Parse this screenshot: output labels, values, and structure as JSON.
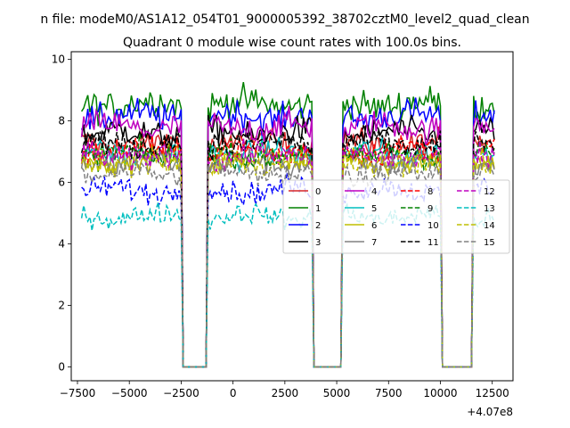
{
  "chart_data": {
    "type": "line",
    "suptitle": "n file: modeM0/AS1A12_054T01_9000005392_38702cztM0_level2_quad_clean",
    "title": "Quadrant 0 module wise count rates with 100.0s bins.",
    "xlabel": "",
    "ylabel": "",
    "x_offset_label": "+4.07e8",
    "xlim": [
      -7800,
      13500
    ],
    "ylim": [
      -0.45,
      10.25
    ],
    "xticks": [
      -7500,
      -5000,
      -2500,
      0,
      2500,
      5000,
      7500,
      10000,
      12500
    ],
    "xtick_labels": [
      "−7500",
      "−5000",
      "−2500",
      "0",
      "2500",
      "5000",
      "7500",
      "10000",
      "12500"
    ],
    "yticks": [
      0,
      2,
      4,
      6,
      8,
      10
    ],
    "ytick_labels": [
      "0",
      "2",
      "4",
      "6",
      "8",
      "10"
    ],
    "grid": false,
    "legend_position": "center-right",
    "legend_columns": 4,
    "bin_width_s": 100,
    "segments": [
      {
        "start": -7300,
        "end": -2500
      },
      {
        "start": -1200,
        "end": 3800
      },
      {
        "start": 5300,
        "end": 10000
      },
      {
        "start": 11600,
        "end": 12600
      }
    ],
    "series": [
      {
        "name": "0",
        "color": "#d62728",
        "dash": "solid",
        "mean": 7.25
      },
      {
        "name": "1",
        "color": "#008000",
        "dash": "solid",
        "mean": 8.55
      },
      {
        "name": "2",
        "color": "#0000ff",
        "dash": "solid",
        "mean": 8.15
      },
      {
        "name": "3",
        "color": "#000000",
        "dash": "solid",
        "mean": 7.6
      },
      {
        "name": "4",
        "color": "#bf00bf",
        "dash": "solid",
        "mean": 7.8
      },
      {
        "name": "5",
        "color": "#00bfbf",
        "dash": "solid",
        "mean": 6.95
      },
      {
        "name": "6",
        "color": "#bfbf00",
        "dash": "solid",
        "mean": 6.75
      },
      {
        "name": "7",
        "color": "#808080",
        "dash": "solid",
        "mean": 6.65
      },
      {
        "name": "8",
        "color": "#ff0000",
        "dash": "dashed",
        "mean": 7.05
      },
      {
        "name": "9",
        "color": "#008000",
        "dash": "dashed",
        "mean": 6.9
      },
      {
        "name": "10",
        "color": "#0000ff",
        "dash": "dashed",
        "mean": 5.75
      },
      {
        "name": "11",
        "color": "#000000",
        "dash": "dashed",
        "mean": 7.25
      },
      {
        "name": "12",
        "color": "#bf00bf",
        "dash": "dashed",
        "mean": 6.85
      },
      {
        "name": "13",
        "color": "#00bfbf",
        "dash": "dashed",
        "mean": 4.9
      },
      {
        "name": "14",
        "color": "#bfbf00",
        "dash": "dashed",
        "mean": 6.6
      },
      {
        "name": "15",
        "color": "#808080",
        "dash": "dashed",
        "mean": 6.3
      }
    ]
  }
}
